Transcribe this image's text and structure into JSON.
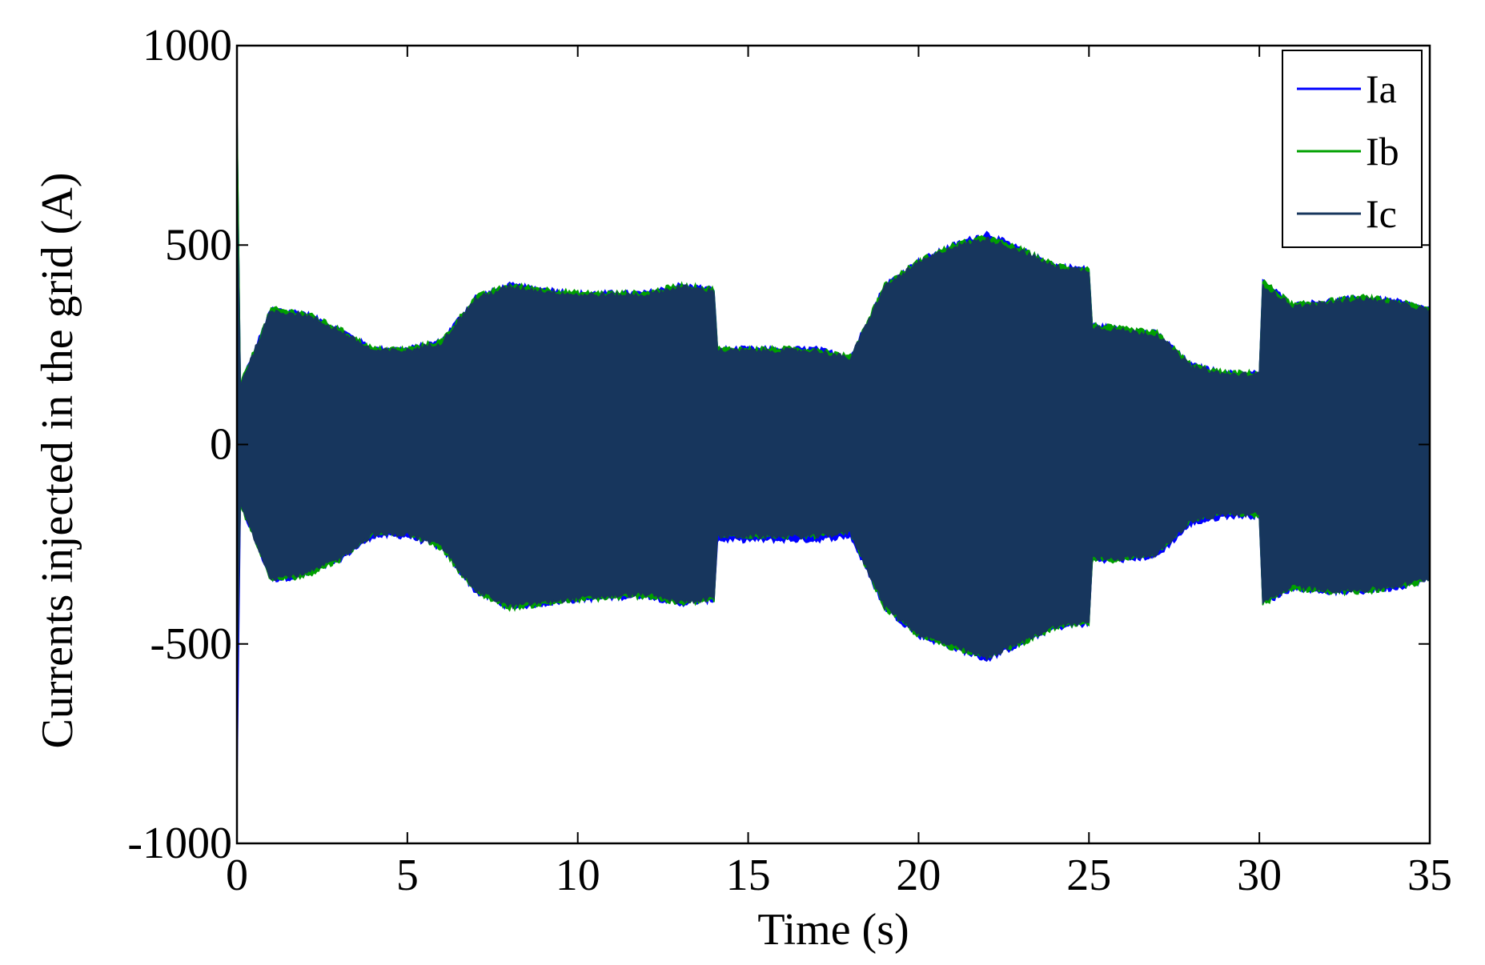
{
  "chart_data": {
    "type": "area",
    "xlabel": "Time (s)",
    "ylabel": "Currents injected in the grid (A)",
    "xlim": [
      0,
      35
    ],
    "ylim": [
      -1000,
      1000
    ],
    "xticks": [
      0,
      5,
      10,
      15,
      20,
      25,
      30,
      35
    ],
    "yticks": [
      -1000,
      -500,
      0,
      500,
      1000
    ],
    "xtick_labels": [
      "0",
      "5",
      "10",
      "15",
      "20",
      "25",
      "30",
      "35"
    ],
    "ytick_labels": [
      "-1000",
      "-500",
      "0",
      "500",
      "1000"
    ],
    "grid": false,
    "legend_position": "top-right",
    "envelope_description": "upper/lower peak envelope of three-phase currents",
    "series": [
      {
        "name": "Ia",
        "color": "#0000ff",
        "x": [
          0,
          0.1,
          1,
          2,
          3,
          4,
          5,
          6,
          7,
          8,
          10,
          12,
          13,
          14,
          14.1,
          15,
          16,
          17,
          18,
          19,
          20,
          21,
          22,
          23,
          24,
          25,
          25.1,
          26,
          27,
          28,
          29,
          30,
          30.1,
          31,
          32,
          33,
          34,
          35
        ],
        "upper": [
          840,
          150,
          340,
          330,
          290,
          240,
          240,
          260,
          370,
          400,
          380,
          380,
          400,
          390,
          240,
          240,
          240,
          240,
          220,
          400,
          460,
          500,
          530,
          490,
          450,
          440,
          300,
          290,
          280,
          200,
          180,
          180,
          410,
          350,
          360,
          370,
          360,
          340
        ],
        "lower": [
          -870,
          -150,
          -340,
          -330,
          -290,
          -230,
          -230,
          -260,
          -370,
          -410,
          -390,
          -380,
          -400,
          -390,
          -240,
          -240,
          -240,
          -240,
          -230,
          -410,
          -480,
          -510,
          -540,
          -500,
          -460,
          -450,
          -290,
          -290,
          -280,
          -200,
          -180,
          -180,
          -400,
          -360,
          -370,
          -370,
          -360,
          -340
        ]
      },
      {
        "name": "Ib",
        "color": "#00a000",
        "x": [
          0,
          0.1,
          1,
          2,
          3,
          4,
          5,
          6,
          7,
          8,
          10,
          12,
          13,
          14,
          14.1,
          15,
          16,
          17,
          18,
          19,
          20,
          21,
          22,
          23,
          24,
          25,
          25.1,
          26,
          27,
          28,
          29,
          30,
          30.1,
          31,
          32,
          33,
          34,
          35
        ],
        "upper": [
          850,
          150,
          340,
          330,
          290,
          240,
          240,
          260,
          370,
          400,
          380,
          380,
          400,
          390,
          240,
          240,
          240,
          240,
          220,
          400,
          460,
          500,
          520,
          490,
          450,
          440,
          300,
          290,
          280,
          200,
          180,
          180,
          410,
          350,
          360,
          370,
          360,
          340
        ],
        "lower": [
          -450,
          -150,
          -340,
          -330,
          -290,
          -220,
          -220,
          -260,
          -370,
          -410,
          -390,
          -380,
          -400,
          -390,
          -230,
          -230,
          -230,
          -230,
          -220,
          -410,
          -480,
          -510,
          -530,
          -500,
          -460,
          -450,
          -290,
          -290,
          -270,
          -190,
          -170,
          -180,
          -400,
          -360,
          -370,
          -370,
          -360,
          -340
        ]
      },
      {
        "name": "Ic",
        "color": "#17365d",
        "x": [
          0,
          0.1,
          1,
          2,
          3,
          4,
          5,
          6,
          7,
          8,
          10,
          12,
          13,
          14,
          14.1,
          15,
          16,
          17,
          18,
          19,
          20,
          21,
          22,
          23,
          24,
          25,
          25.1,
          26,
          27,
          28,
          29,
          30,
          30.1,
          31,
          32,
          33,
          34,
          35
        ],
        "upper": [
          680,
          150,
          335,
          325,
          285,
          235,
          235,
          255,
          365,
          395,
          375,
          375,
          395,
          385,
          235,
          235,
          235,
          235,
          215,
          395,
          455,
          495,
          515,
          485,
          445,
          435,
          295,
          285,
          275,
          195,
          175,
          175,
          400,
          345,
          355,
          365,
          355,
          335
        ],
        "lower": [
          -640,
          -150,
          -335,
          -325,
          -285,
          -225,
          -225,
          -255,
          -365,
          -405,
          -385,
          -375,
          -395,
          -385,
          -230,
          -230,
          -230,
          -230,
          -220,
          -405,
          -475,
          -505,
          -535,
          -495,
          -455,
          -445,
          -285,
          -285,
          -275,
          -190,
          -175,
          -175,
          -395,
          -355,
          -365,
          -365,
          -355,
          -335
        ]
      }
    ]
  }
}
